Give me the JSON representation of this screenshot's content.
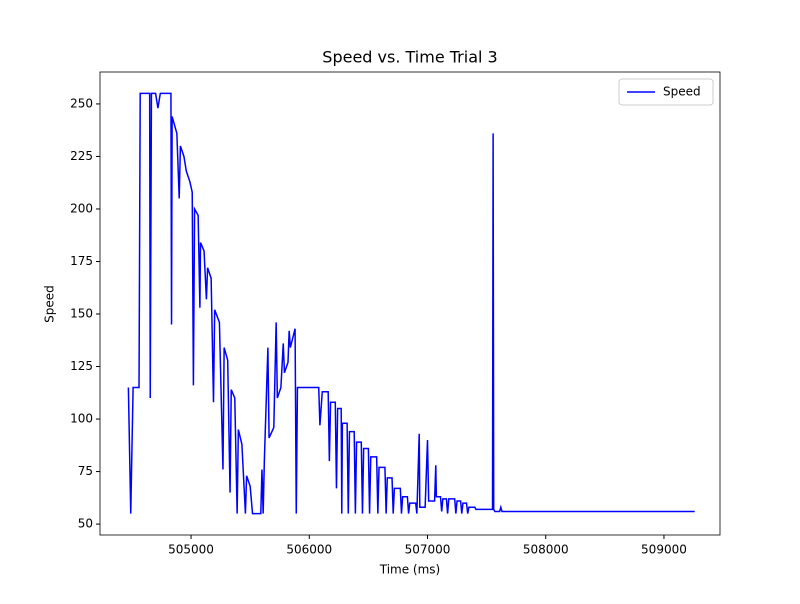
{
  "chart_data": {
    "type": "line",
    "title": "Speed vs. Time Trial 3",
    "x_label": "Time (ms)",
    "y_label": "Speed",
    "x": [
      504470,
      504490,
      504510,
      504560,
      504570,
      504650,
      504655,
      504665,
      504700,
      504720,
      504740,
      504830,
      504835,
      504840,
      504860,
      504880,
      504900,
      504910,
      504940,
      504960,
      504990,
      505010,
      505020,
      505030,
      505060,
      505075,
      505080,
      505110,
      505130,
      505140,
      505170,
      505190,
      505200,
      505240,
      505270,
      505280,
      505310,
      505330,
      505340,
      505370,
      505390,
      505400,
      505430,
      505460,
      505470,
      505500,
      505520,
      505590,
      505600,
      505610,
      505620,
      505650,
      505660,
      505700,
      505720,
      505730,
      505760,
      505780,
      505790,
      505820,
      505830,
      505840,
      505880,
      505890,
      505900,
      506080,
      506090,
      506110,
      506160,
      506170,
      506180,
      506220,
      506230,
      506240,
      506270,
      506275,
      506280,
      506320,
      506330,
      506340,
      506380,
      506390,
      506400,
      506440,
      506450,
      506460,
      506500,
      506510,
      506520,
      506570,
      506580,
      506590,
      506640,
      506650,
      506660,
      506700,
      506710,
      506720,
      506770,
      506780,
      506790,
      506830,
      506840,
      506850,
      506900,
      506910,
      506930,
      506935,
      506980,
      507000,
      507010,
      507060,
      507070,
      507075,
      507110,
      507120,
      507130,
      507160,
      507170,
      507180,
      507230,
      507240,
      507250,
      507280,
      507290,
      507300,
      507330,
      507340,
      507350,
      507400,
      507410,
      507550,
      507555,
      507560,
      507570,
      507610,
      507620,
      507630,
      509260
    ],
    "series": [
      {
        "name": "Speed",
        "color": "#0000ff",
        "values": [
          115,
          55,
          115,
          115,
          255,
          255,
          110,
          255,
          255,
          248,
          255,
          255,
          145,
          244,
          240,
          236,
          205,
          230,
          225,
          218,
          213,
          208,
          116,
          200,
          197,
          153,
          184,
          180,
          157,
          172,
          167,
          108,
          152,
          146,
          76,
          134,
          128,
          65,
          114,
          110,
          55,
          95,
          88,
          55,
          73,
          68,
          55,
          55,
          76,
          55,
          80,
          134,
          91,
          96,
          146,
          110,
          115,
          136,
          122,
          127,
          142,
          134,
          143,
          55,
          115,
          115,
          97,
          113,
          113,
          80,
          108,
          108,
          67,
          105,
          105,
          55,
          98,
          98,
          55,
          94,
          94,
          55,
          89,
          89,
          55,
          86,
          86,
          55,
          82,
          82,
          55,
          77,
          77,
          55,
          72,
          72,
          55,
          67,
          67,
          55,
          63,
          63,
          55,
          60,
          60,
          55,
          93,
          58,
          58,
          90,
          61,
          61,
          78,
          63,
          63,
          56,
          62,
          62,
          55,
          62,
          62,
          55,
          61,
          61,
          55,
          60,
          60,
          55,
          58,
          58,
          57,
          57,
          236,
          57,
          56,
          56,
          58,
          56,
          56
        ]
      }
    ],
    "xlim": [
      504230,
      509474
    ],
    "ylim": [
      44.8,
      265.2
    ],
    "xticks": [
      505000,
      506000,
      507000,
      508000,
      509000
    ],
    "yticks": [
      50,
      75,
      100,
      125,
      150,
      175,
      200,
      225,
      250
    ],
    "legend": "upper right"
  }
}
